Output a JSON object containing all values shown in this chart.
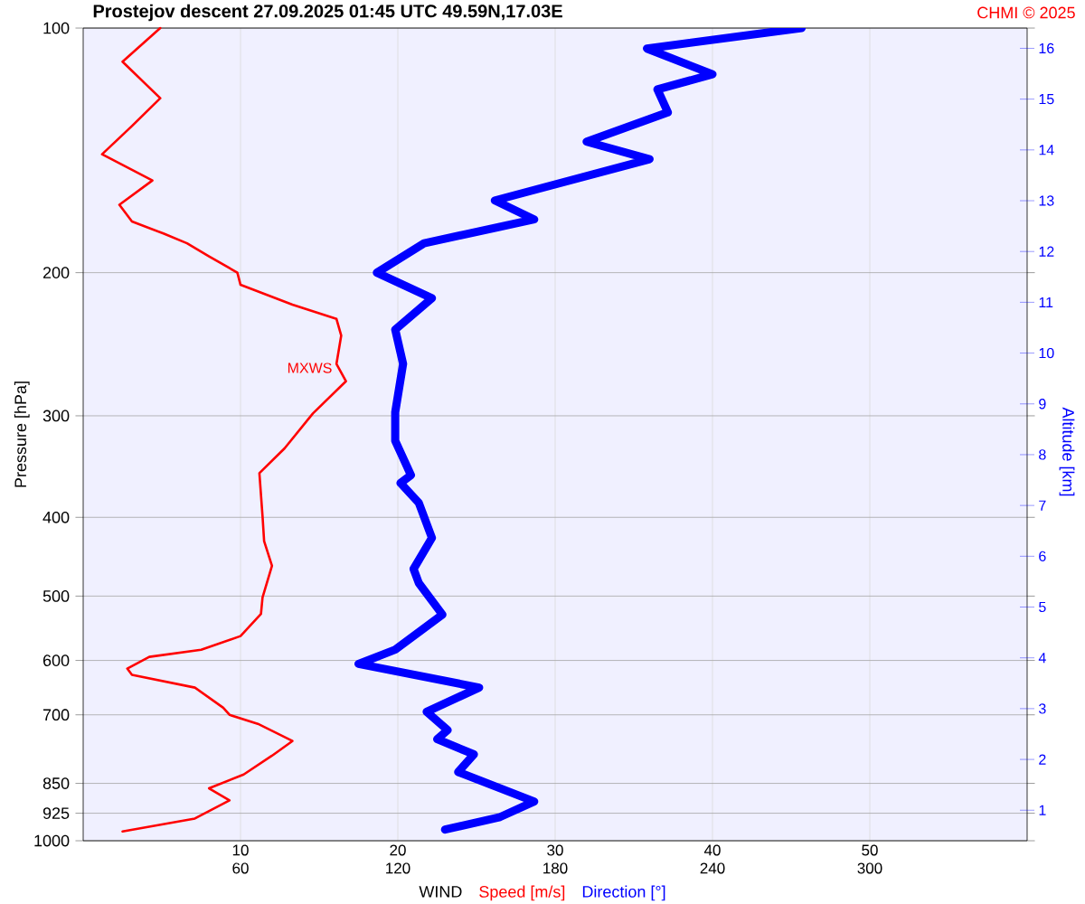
{
  "chart_data": {
    "type": "line",
    "orientation": "horizontal",
    "title": "Prostejov   descent   27.09.2025 01:45 UTC  49.59N,17.03E",
    "xlabel": "WIND",
    "ylabel": "Pressure [hPa]",
    "y2label": "Altitude [km]",
    "xlim": [
      0,
      60
    ],
    "xticks": [
      10,
      20,
      30,
      40,
      50
    ],
    "x2lim": [
      0,
      360
    ],
    "x2ticks": [
      60,
      120,
      180,
      240,
      300
    ],
    "ylim": [
      1000,
      100
    ],
    "log": "y",
    "yticks": [
      100,
      200,
      300,
      400,
      500,
      600,
      700,
      850,
      925,
      1000
    ],
    "y2lim": [
      0.4,
      16.4
    ],
    "y2ticks": [
      1,
      2,
      3,
      4,
      5,
      6,
      7,
      8,
      9,
      10,
      11,
      12,
      13,
      14,
      15,
      16
    ],
    "grid": true,
    "legend": "bottom",
    "marker": "none",
    "line_style": "solid",
    "series": [
      {
        "name": "Speed [m/s]",
        "color": "#ff0000",
        "x": [
          100,
          110,
          122,
          132,
          143,
          154,
          165,
          173,
          179,
          184,
          191,
          200,
          207,
          219,
          228,
          239,
          259,
          272,
          298,
          329,
          353,
          399,
          428,
          459,
          502,
          526,
          560,
          582,
          594,
          614,
          625,
          648,
          686,
          700,
          718,
          754,
          786,
          829,
          862,
          892,
          939,
          974
        ],
        "values": [
          4.9,
          2.5,
          4.9,
          3.1,
          1.2,
          4.4,
          2.3,
          3.1,
          5.1,
          6.6,
          8.0,
          9.8,
          10.0,
          13.3,
          16.1,
          16.4,
          16.1,
          16.7,
          14.6,
          12.8,
          11.2,
          11.4,
          11.5,
          12.0,
          11.4,
          11.3,
          10.0,
          7.5,
          4.2,
          2.8,
          3.1,
          7.1,
          8.9,
          9.3,
          11.1,
          13.3,
          12.0,
          10.2,
          8.0,
          9.3,
          7.1,
          2.5
        ]
      },
      {
        "name": "Direction [°]",
        "color": "#0000ff",
        "axis": "x2",
        "x": [
          100,
          106,
          114,
          119,
          127,
          138,
          145,
          163,
          172,
          184,
          200,
          215,
          235,
          259,
          297,
          322,
          355,
          363,
          384,
          424,
          463,
          482,
          527,
          582,
          606,
          648,
          694,
          731,
          750,
          783,
          823,
          895,
          935,
          969
        ],
        "values": [
          274,
          215,
          240,
          219,
          223,
          192,
          216,
          157,
          172,
          130,
          112,
          133,
          119,
          122,
          119,
          119,
          125,
          121,
          128,
          133,
          126,
          128,
          137,
          119,
          105,
          151,
          131,
          139,
          135,
          149,
          143,
          172,
          159,
          138
        ]
      }
    ],
    "annotations": [
      {
        "text": "MXWS",
        "x": 17,
        "y": 273
      },
      "CHMI © 2025"
    ]
  }
}
